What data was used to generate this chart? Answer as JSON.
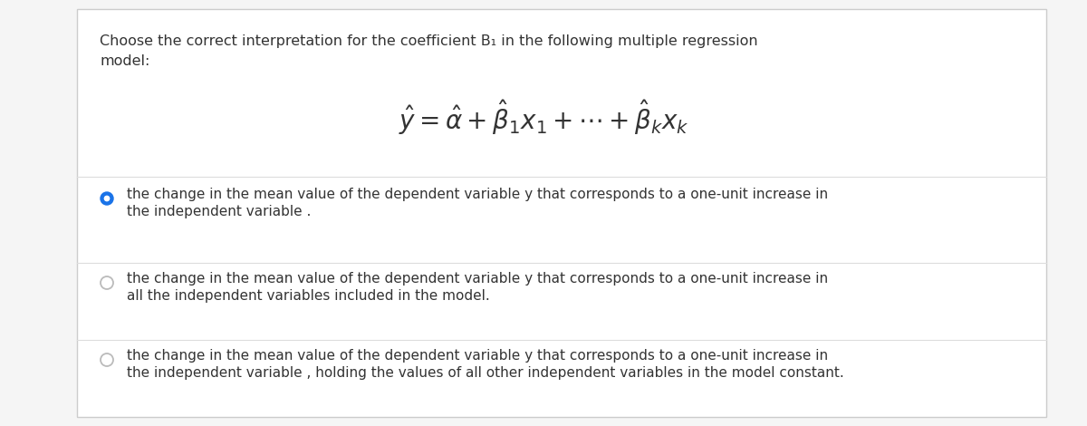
{
  "background_color": "#f5f5f5",
  "card_color": "#ffffff",
  "border_color": "#cccccc",
  "title_line1": "Choose the correct interpretation for the coefficient B₁ in the following multiple regression",
  "title_line2": "model:",
  "formula": "$\\hat{y} = \\hat{\\alpha} + \\hat{\\beta}_1 x_1 + \\cdots + \\hat{\\beta}_k x_k$",
  "options": [
    {
      "line1": "the change in the mean value of the dependent variable y that corresponds to a one-unit increase in",
      "line2": "the independent variable .",
      "selected": true
    },
    {
      "line1": "the change in the mean value of the dependent variable y that corresponds to a one-unit increase in",
      "line2": "all the independent variables included in the model.",
      "selected": false
    },
    {
      "line1": "the change in the mean value of the dependent variable y that corresponds to a one-unit increase in",
      "line2": "the independent variable , holding the values of all other independent variables in the model constant.",
      "selected": false
    }
  ],
  "title_fontsize": 11.5,
  "option_fontsize": 11,
  "formula_fontsize": 20,
  "text_color": "#333333",
  "selected_color": "#1a73e8",
  "unselected_color": "#bbbbbb",
  "separator_color": "#dddddd",
  "fig_width": 12.0,
  "fig_height": 4.7
}
